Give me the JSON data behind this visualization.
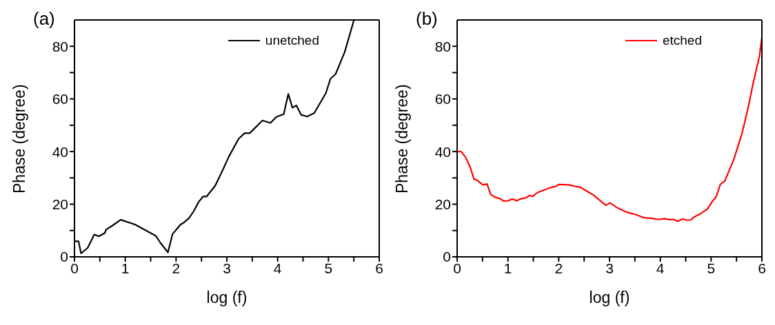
{
  "chart_data": [
    {
      "type": "line",
      "annotations": [
        "(a)"
      ],
      "xlabel": "log (f)",
      "ylabel": "Phase (degree)",
      "xlim": [
        0,
        6
      ],
      "ylim": [
        0,
        90
      ],
      "xticks": [
        0,
        {
          "value": 0.5,
          "label": null
        },
        1,
        {
          "value": 1.5,
          "label": null
        },
        2,
        {
          "value": 2.5,
          "label": null
        },
        3,
        {
          "value": 3.5,
          "label": null
        },
        4,
        {
          "value": 4.5,
          "label": null
        },
        5,
        {
          "value": 5.5,
          "label": null
        },
        6
      ],
      "yticks": [
        0,
        {
          "value": 10,
          "label": null
        },
        20,
        {
          "value": 30,
          "label": null
        },
        40,
        {
          "value": 50,
          "label": null
        },
        60,
        {
          "value": 70,
          "label": null
        },
        80
      ],
      "legend": "top right",
      "x": [
        0,
        0.08,
        0.13,
        0.26,
        0.39,
        0.48,
        0.6,
        0.62,
        0.75,
        0.91,
        1.19,
        1.6,
        1.7,
        1.84,
        1.93,
        2.09,
        2.16,
        2.26,
        2.35,
        2.44,
        2.53,
        2.6,
        2.77,
        2.9,
        3.04,
        3.23,
        3.35,
        3.45,
        3.53,
        3.7,
        3.86,
        3.97,
        4.12,
        4.21,
        4.29,
        4.37,
        4.46,
        4.58,
        4.72,
        4.95,
        5.04,
        5.14,
        5.32,
        5.5
      ],
      "series": [
        {
          "name": "unetched",
          "color": "#000000",
          "values": [
            5.9,
            5.9,
            1.3,
            3.4,
            8.5,
            7.8,
            9.1,
            10.3,
            11.9,
            14.1,
            12.3,
            8.0,
            5.1,
            1.7,
            8.6,
            12.3,
            13.1,
            14.8,
            17.4,
            20.7,
            22.9,
            22.9,
            27,
            32.2,
            38.1,
            44.8,
            47.0,
            47.0,
            48.5,
            51.8,
            50.9,
            53.1,
            54.2,
            61.9,
            56.7,
            57.5,
            54.0,
            53.3,
            54.6,
            62.2,
            67.7,
            69.4,
            77.8,
            89.8
          ]
        }
      ]
    },
    {
      "type": "line",
      "annotations": [
        "(b)"
      ],
      "xlabel": "log (f)",
      "ylabel": "Phase (degree)",
      "xlim": [
        0,
        6
      ],
      "ylim": [
        0,
        90
      ],
      "xticks": [
        0,
        {
          "value": 0.5,
          "label": null
        },
        1,
        {
          "value": 1.5,
          "label": null
        },
        2,
        {
          "value": 2.5,
          "label": null
        },
        3,
        {
          "value": 3.5,
          "label": null
        },
        4,
        {
          "value": 4.5,
          "label": null
        },
        5,
        {
          "value": 5.5,
          "label": null
        },
        6
      ],
      "yticks": [
        0,
        {
          "value": 10,
          "label": null
        },
        20,
        {
          "value": 30,
          "label": null
        },
        40,
        {
          "value": 50,
          "label": null
        },
        60,
        {
          "value": 70,
          "label": null
        },
        80
      ],
      "legend": "top right",
      "x": [
        0,
        0.08,
        0.17,
        0.26,
        0.33,
        0.4,
        0.51,
        0.59,
        0.66,
        0.75,
        0.83,
        0.92,
        1.0,
        1.09,
        1.17,
        1.25,
        1.35,
        1.42,
        1.49,
        1.58,
        1.71,
        1.85,
        1.94,
        2.0,
        2.22,
        2.34,
        2.43,
        2.54,
        2.68,
        2.82,
        2.93,
        3.01,
        3.14,
        3.35,
        3.51,
        3.69,
        3.84,
        3.95,
        4.09,
        4.18,
        4.27,
        4.34,
        4.44,
        4.5,
        4.6,
        4.67,
        4.8,
        4.93,
        5.03,
        5.1,
        5.18,
        5.27,
        5.45,
        5.61,
        5.73,
        5.82,
        5.9,
        5.95,
        6.0
      ],
      "series": [
        {
          "name": "etched",
          "color": "#ff0000",
          "values": [
            40.0,
            40.0,
            37.7,
            33.9,
            29.6,
            29.0,
            27.3,
            27.7,
            23.7,
            22.6,
            22.2,
            21.2,
            21.3,
            22.0,
            21.3,
            22.0,
            22.4,
            23.3,
            23.0,
            24.4,
            25.4,
            26.4,
            26.7,
            27.5,
            27.3,
            26.7,
            26.4,
            25.1,
            23.5,
            21.3,
            19.6,
            20.5,
            18.8,
            16.9,
            16.1,
            14.8,
            14.6,
            14.2,
            14.5,
            14.1,
            14.2,
            13.5,
            14.4,
            14.0,
            14.0,
            15.2,
            16.5,
            18.2,
            21.2,
            22.8,
            27.5,
            28.8,
            37.2,
            47.0,
            56.7,
            65.2,
            72,
            76,
            83.4
          ]
        }
      ]
    }
  ]
}
